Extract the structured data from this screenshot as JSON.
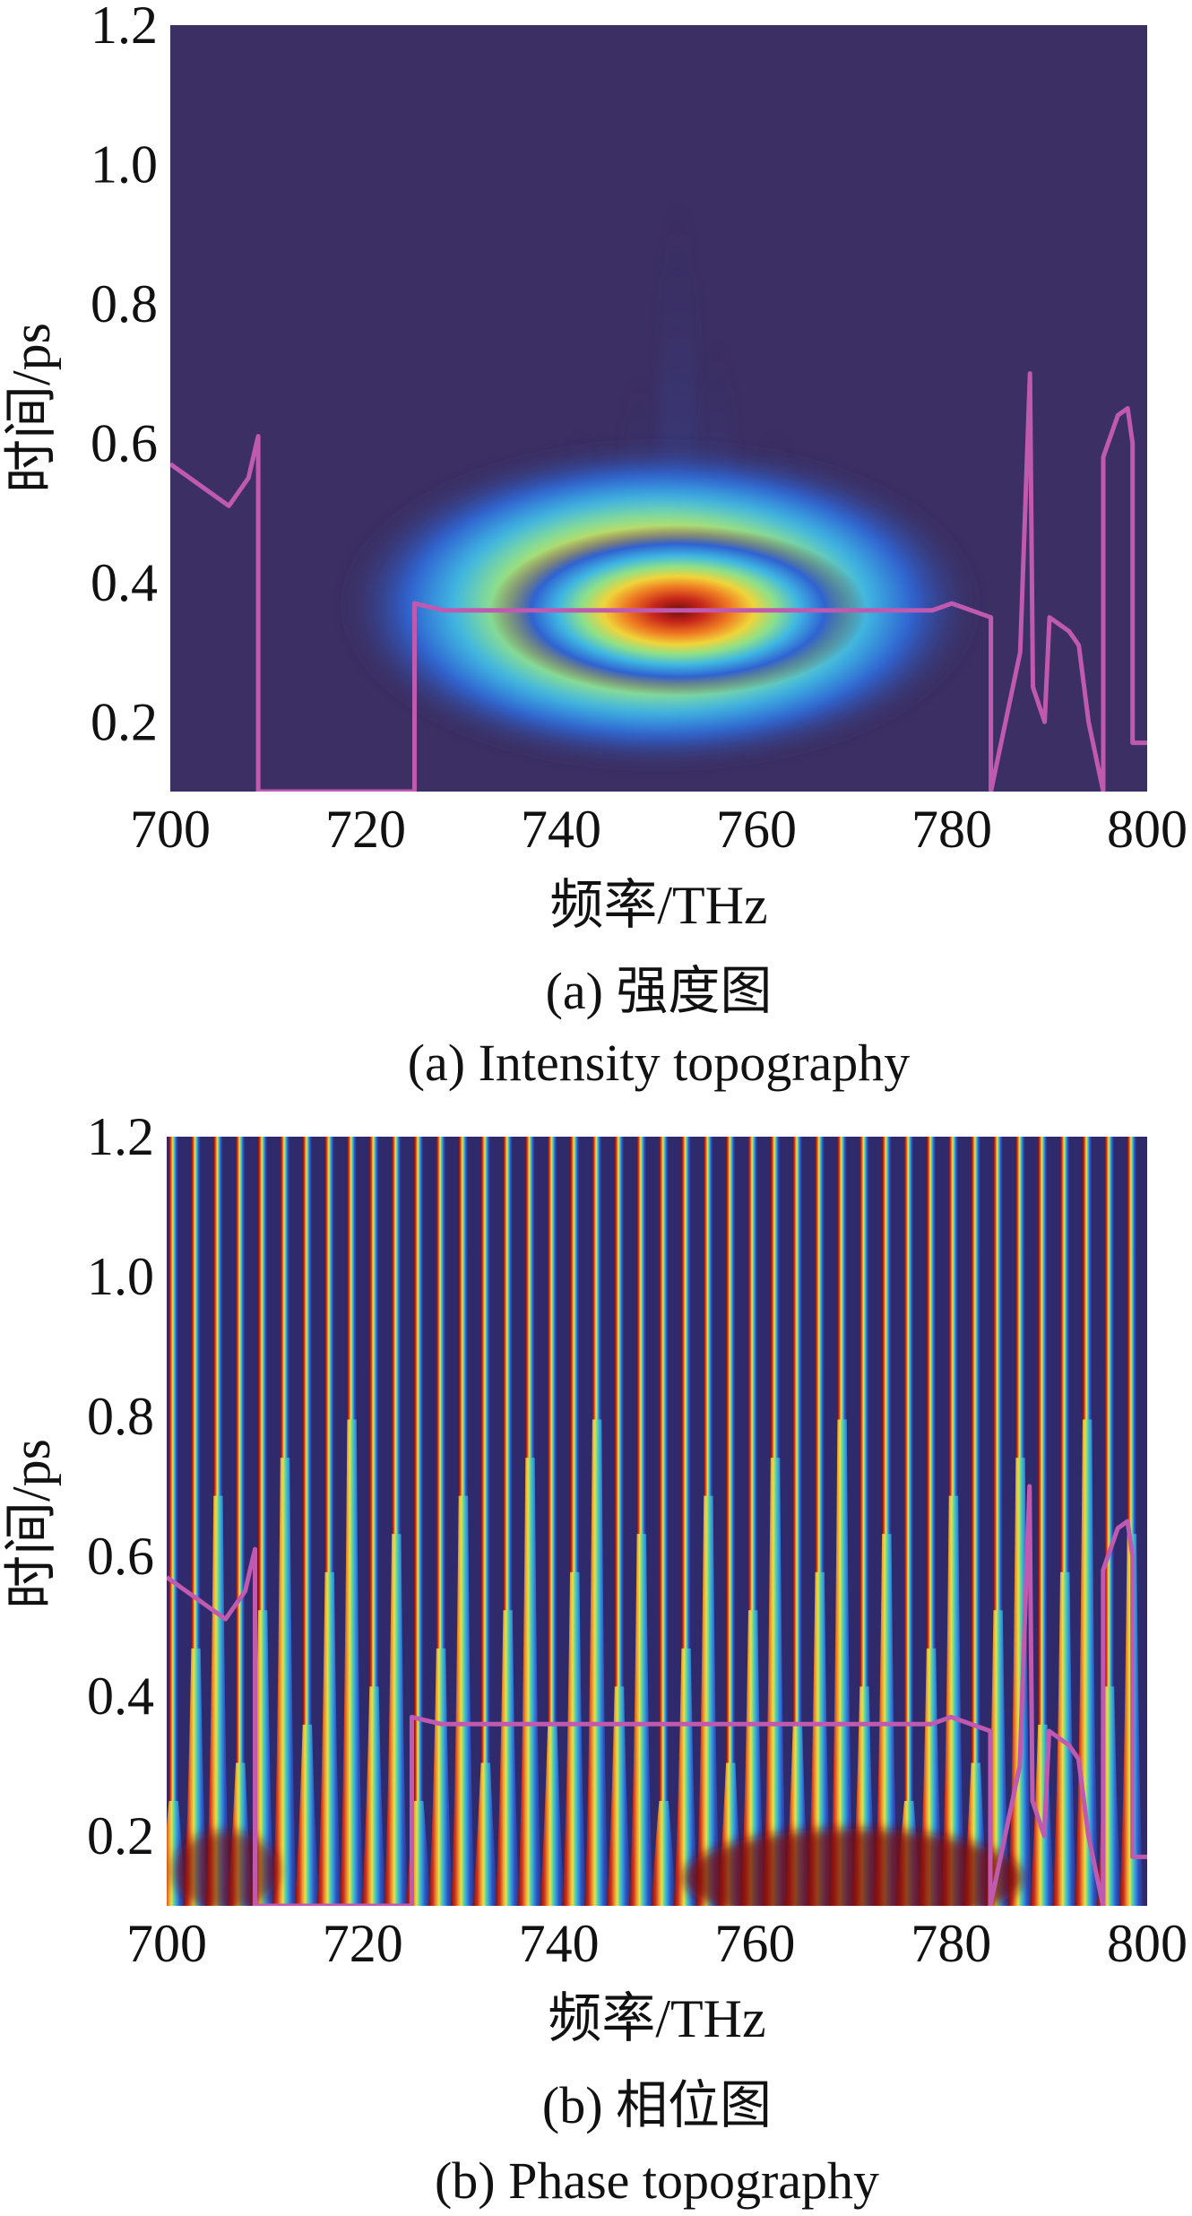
{
  "colors": {
    "background_dark": "#3b2f63",
    "overlay_line": "#c05ab0",
    "colormap": [
      "#2e2a6b",
      "#2f55c8",
      "#35a3e0",
      "#5fd6a0",
      "#e6e64a",
      "#f2a32c",
      "#e0391f",
      "#7a0f0f"
    ]
  },
  "chart_data": [
    {
      "type": "heatmap",
      "xlabel": "频率/THz",
      "ylabel": "时间/ps",
      "xlim": [
        700,
        800
      ],
      "ylim": [
        0.1,
        1.2
      ],
      "xticks": [
        "700",
        "720",
        "740",
        "760",
        "780",
        "800"
      ],
      "yticks": [
        "0.2",
        "0.4",
        "0.6",
        "0.8",
        "1.0",
        "1.2"
      ],
      "caption_cn": "(a) 强度图",
      "caption_en": "(a) Intensity topography",
      "peak": {
        "x": 752,
        "y": 0.36
      },
      "overlay_line": {
        "x": [
          700,
          702,
          704,
          706,
          708,
          709,
          709,
          725,
          725,
          728,
          740,
          752,
          770,
          774,
          778,
          780,
          784,
          784,
          787,
          788,
          788.3,
          789.5,
          790,
          792,
          793,
          794,
          795.5,
          795.5,
          796,
          797,
          798,
          798.5,
          798.5,
          800
        ],
        "y": [
          0.57,
          0.55,
          0.53,
          0.51,
          0.55,
          0.61,
          0.1,
          0.1,
          0.37,
          0.36,
          0.36,
          0.36,
          0.36,
          0.36,
          0.36,
          0.37,
          0.35,
          0.1,
          0.3,
          0.7,
          0.25,
          0.2,
          0.35,
          0.33,
          0.31,
          0.2,
          0.1,
          0.58,
          0.6,
          0.64,
          0.65,
          0.6,
          0.17,
          0.17
        ]
      }
    },
    {
      "type": "heatmap",
      "xlabel": "频率/THz",
      "ylabel": "时间/ps",
      "xlim": [
        700,
        800
      ],
      "ylim": [
        0.1,
        1.2
      ],
      "xticks": [
        "700",
        "720",
        "740",
        "760",
        "780",
        "800"
      ],
      "yticks": [
        "0.2",
        "0.4",
        "0.6",
        "0.8",
        "1.0",
        "1.2"
      ],
      "caption_cn": "(b) 相位图",
      "caption_en": "(b) Phase topography",
      "overlay_line": {
        "x": [
          700,
          702,
          704,
          706,
          708,
          709,
          709,
          725,
          725,
          728,
          740,
          752,
          770,
          774,
          778,
          780,
          784,
          784,
          787,
          788,
          788.3,
          789.5,
          790,
          792,
          793,
          794,
          795.5,
          795.5,
          796,
          797,
          798,
          798.5,
          798.5,
          800
        ],
        "y": [
          0.57,
          0.55,
          0.53,
          0.51,
          0.55,
          0.61,
          0.1,
          0.1,
          0.37,
          0.36,
          0.36,
          0.36,
          0.36,
          0.36,
          0.36,
          0.37,
          0.35,
          0.1,
          0.3,
          0.7,
          0.25,
          0.2,
          0.35,
          0.33,
          0.31,
          0.2,
          0.1,
          0.58,
          0.6,
          0.64,
          0.65,
          0.6,
          0.17,
          0.17
        ]
      }
    }
  ]
}
